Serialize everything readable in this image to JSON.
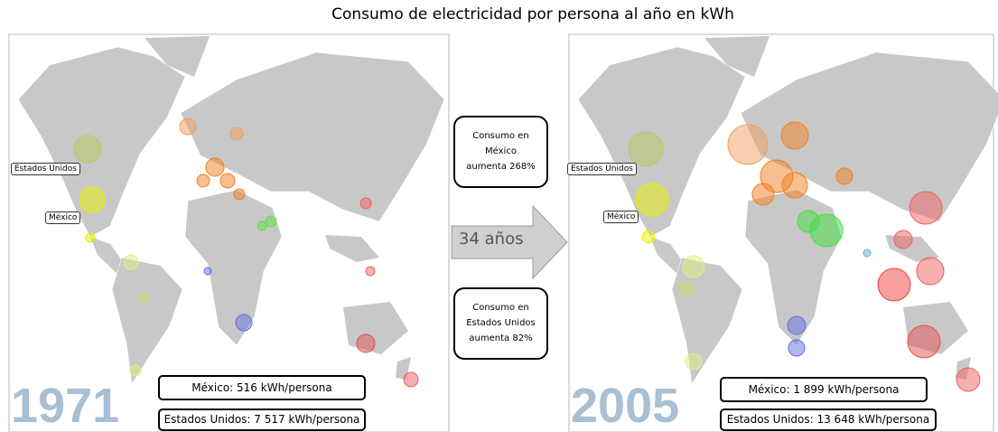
{
  "title": "Consumo de electricidad por persona al año en kWh",
  "panels": [
    {
      "year": "1971",
      "label_us": "Estados Unidos",
      "label_mexico": "México",
      "box_mexico": "México: 516 kWh/persona",
      "box_us": "Estados Unidos: 7 517 kWh/persona"
    },
    {
      "year": "2005",
      "label_us": "Estados Unidos",
      "label_mexico": "México",
      "box_mexico": "México: 1 899 kWh/persona",
      "box_us": "Estados Unidos: 13 648 kWh/persona"
    }
  ],
  "middle": {
    "note_mexico": [
      "Consumo en",
      "México",
      "aumenta 268%"
    ],
    "arrow": "34 años",
    "note_us": [
      "Consumo en",
      "Estados Unidos",
      "aumenta 82%"
    ]
  }
}
